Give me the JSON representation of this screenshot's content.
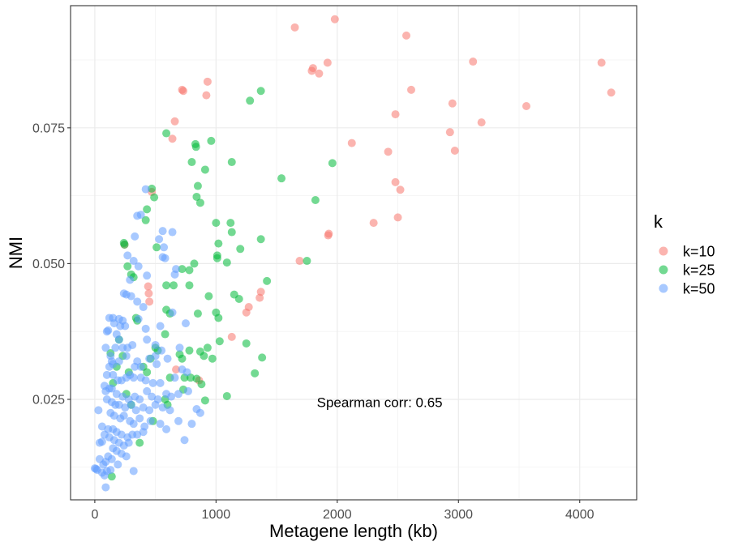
{
  "chart_data": {
    "type": "scatter",
    "xlabel": "Metagene length (kb)",
    "ylabel": "NMI",
    "xlim": [
      -200,
      4470
    ],
    "ylim": [
      0.0065,
      0.0975
    ],
    "x_ticks": [
      0,
      1000,
      2000,
      3000,
      4000
    ],
    "x_tick_labels": [
      "0",
      "1000",
      "2000",
      "3000",
      "4000"
    ],
    "y_ticks": [
      0.025,
      0.05,
      0.075
    ],
    "y_tick_labels": [
      "0.025",
      "0.050",
      "0.075"
    ],
    "grid": true,
    "legend": {
      "title": "k",
      "position": "right"
    },
    "annotation": {
      "text": "Spearman corr: 0.65",
      "x": 2350,
      "y": 0.0245
    },
    "series": [
      {
        "name": "k=10",
        "color": "#F8766D",
        "points": [
          [
            1650,
            0.0935
          ],
          [
            1980,
            0.095
          ],
          [
            2570,
            0.092
          ],
          [
            1790,
            0.0855
          ],
          [
            1800,
            0.086
          ],
          [
            1850,
            0.085
          ],
          [
            1920,
            0.087
          ],
          [
            3120,
            0.0872
          ],
          [
            4180,
            0.087
          ],
          [
            4260,
            0.0815
          ],
          [
            2610,
            0.082
          ],
          [
            2950,
            0.0795
          ],
          [
            3560,
            0.079
          ],
          [
            3190,
            0.076
          ],
          [
            2930,
            0.0742
          ],
          [
            2480,
            0.0775
          ],
          [
            2120,
            0.0722
          ],
          [
            2970,
            0.0708
          ],
          [
            2420,
            0.0706
          ],
          [
            930,
            0.0835
          ],
          [
            720,
            0.082
          ],
          [
            730,
            0.0818
          ],
          [
            920,
            0.081
          ],
          [
            660,
            0.0762
          ],
          [
            640,
            0.073
          ],
          [
            2480,
            0.065
          ],
          [
            2520,
            0.0636
          ],
          [
            2300,
            0.0575
          ],
          [
            2500,
            0.0585
          ],
          [
            1930,
            0.0555
          ],
          [
            1925,
            0.0552
          ],
          [
            1690,
            0.0505
          ],
          [
            1370,
            0.0448
          ],
          [
            1360,
            0.0437
          ],
          [
            1270,
            0.042
          ],
          [
            1250,
            0.041
          ],
          [
            1130,
            0.0365
          ],
          [
            440,
            0.0458
          ],
          [
            445,
            0.0445
          ],
          [
            450,
            0.043
          ],
          [
            245,
            0.0535
          ],
          [
            670,
            0.0305
          ],
          [
            860,
            0.0285
          ],
          [
            470,
            0.0632
          ]
        ]
      },
      {
        "name": "k=25",
        "color": "#00BA38",
        "points": [
          [
            1370,
            0.0818
          ],
          [
            1280,
            0.08
          ],
          [
            590,
            0.074
          ],
          [
            960,
            0.0726
          ],
          [
            830,
            0.072
          ],
          [
            835,
            0.0715
          ],
          [
            800,
            0.0687
          ],
          [
            1130,
            0.0687
          ],
          [
            1960,
            0.0685
          ],
          [
            910,
            0.0673
          ],
          [
            1540,
            0.0657
          ],
          [
            850,
            0.0643
          ],
          [
            840,
            0.0623
          ],
          [
            470,
            0.0638
          ],
          [
            490,
            0.0622
          ],
          [
            430,
            0.06
          ],
          [
            1820,
            0.0617
          ],
          [
            870,
            0.0612
          ],
          [
            420,
            0.058
          ],
          [
            1000,
            0.0575
          ],
          [
            1120,
            0.0575
          ],
          [
            1130,
            0.0558
          ],
          [
            1370,
            0.0545
          ],
          [
            1020,
            0.0537
          ],
          [
            1200,
            0.0527
          ],
          [
            510,
            0.053
          ],
          [
            240,
            0.0538
          ],
          [
            245,
            0.0535
          ],
          [
            820,
            0.05
          ],
          [
            1010,
            0.0515
          ],
          [
            1010,
            0.051
          ],
          [
            1090,
            0.0502
          ],
          [
            1420,
            0.0468
          ],
          [
            1750,
            0.0505
          ],
          [
            590,
            0.046
          ],
          [
            720,
            0.049
          ],
          [
            780,
            0.0488
          ],
          [
            780,
            0.046
          ],
          [
            650,
            0.046
          ],
          [
            940,
            0.044
          ],
          [
            1150,
            0.0443
          ],
          [
            1190,
            0.0435
          ],
          [
            270,
            0.0495
          ],
          [
            300,
            0.048
          ],
          [
            320,
            0.0475
          ],
          [
            340,
            0.04
          ],
          [
            590,
            0.0415
          ],
          [
            620,
            0.0408
          ],
          [
            850,
            0.0408
          ],
          [
            1000,
            0.041
          ],
          [
            1020,
            0.04
          ],
          [
            1030,
            0.0357
          ],
          [
            1250,
            0.0353
          ],
          [
            930,
            0.0345
          ],
          [
            780,
            0.034
          ],
          [
            870,
            0.0338
          ],
          [
            900,
            0.033
          ],
          [
            970,
            0.0325
          ],
          [
            1380,
            0.0327
          ],
          [
            700,
            0.0333
          ],
          [
            720,
            0.0325
          ],
          [
            500,
            0.0345
          ],
          [
            460,
            0.0325
          ],
          [
            430,
            0.03
          ],
          [
            580,
            0.037
          ],
          [
            520,
            0.034
          ],
          [
            400,
            0.031
          ],
          [
            620,
            0.029
          ],
          [
            740,
            0.029
          ],
          [
            790,
            0.029
          ],
          [
            840,
            0.0288
          ],
          [
            880,
            0.0278
          ],
          [
            730,
            0.0268
          ],
          [
            1320,
            0.0298
          ],
          [
            1090,
            0.0256
          ],
          [
            910,
            0.0248
          ],
          [
            580,
            0.025
          ],
          [
            600,
            0.024
          ],
          [
            370,
            0.017
          ],
          [
            140,
            0.0108
          ],
          [
            300,
            0.024
          ],
          [
            180,
            0.031
          ],
          [
            150,
            0.028
          ],
          [
            230,
            0.033
          ],
          [
            260,
            0.026
          ],
          [
            480,
            0.021
          ],
          [
            350,
            0.0395
          ],
          [
            200,
            0.036
          ],
          [
            130,
            0.0335
          ],
          [
            280,
            0.03
          ]
        ]
      },
      {
        "name": "k=50",
        "color": "#619CFF",
        "points": [
          [
            420,
            0.0637
          ],
          [
            350,
            0.0588
          ],
          [
            380,
            0.059
          ],
          [
            560,
            0.056
          ],
          [
            640,
            0.0558
          ],
          [
            530,
            0.0545
          ],
          [
            330,
            0.055
          ],
          [
            570,
            0.053
          ],
          [
            270,
            0.0515
          ],
          [
            580,
            0.051
          ],
          [
            560,
            0.0512
          ],
          [
            320,
            0.0505
          ],
          [
            360,
            0.0495
          ],
          [
            670,
            0.049
          ],
          [
            660,
            0.048
          ],
          [
            290,
            0.047
          ],
          [
            430,
            0.0478
          ],
          [
            240,
            0.0445
          ],
          [
            260,
            0.0443
          ],
          [
            300,
            0.044
          ],
          [
            350,
            0.043
          ],
          [
            400,
            0.042
          ],
          [
            120,
            0.04
          ],
          [
            150,
            0.04
          ],
          [
            200,
            0.0398
          ],
          [
            230,
            0.0395
          ],
          [
            360,
            0.0398
          ],
          [
            160,
            0.039
          ],
          [
            210,
            0.0385
          ],
          [
            250,
            0.0385
          ],
          [
            100,
            0.0375
          ],
          [
            110,
            0.0377
          ],
          [
            180,
            0.037
          ],
          [
            200,
            0.036
          ],
          [
            420,
            0.038
          ],
          [
            430,
            0.036
          ],
          [
            540,
            0.0385
          ],
          [
            640,
            0.041
          ],
          [
            750,
            0.039
          ],
          [
            170,
            0.0345
          ],
          [
            90,
            0.0345
          ],
          [
            230,
            0.0345
          ],
          [
            270,
            0.0345
          ],
          [
            310,
            0.035
          ],
          [
            500,
            0.035
          ],
          [
            550,
            0.034
          ],
          [
            700,
            0.0345
          ],
          [
            130,
            0.033
          ],
          [
            140,
            0.032
          ],
          [
            120,
            0.031
          ],
          [
            150,
            0.0315
          ],
          [
            200,
            0.032
          ],
          [
            260,
            0.033
          ],
          [
            330,
            0.031
          ],
          [
            350,
            0.032
          ],
          [
            380,
            0.031
          ],
          [
            450,
            0.0325
          ],
          [
            500,
            0.033
          ],
          [
            510,
            0.0315
          ],
          [
            600,
            0.0325
          ],
          [
            720,
            0.0305
          ],
          [
            760,
            0.03
          ],
          [
            100,
            0.0295
          ],
          [
            150,
            0.0295
          ],
          [
            190,
            0.0285
          ],
          [
            220,
            0.0285
          ],
          [
            260,
            0.029
          ],
          [
            290,
            0.0295
          ],
          [
            320,
            0.029
          ],
          [
            380,
            0.029
          ],
          [
            420,
            0.0285
          ],
          [
            480,
            0.028
          ],
          [
            540,
            0.028
          ],
          [
            660,
            0.029
          ],
          [
            80,
            0.0275
          ],
          [
            120,
            0.027
          ],
          [
            90,
            0.0265
          ],
          [
            140,
            0.027
          ],
          [
            180,
            0.026
          ],
          [
            230,
            0.0255
          ],
          [
            280,
            0.025
          ],
          [
            330,
            0.0255
          ],
          [
            370,
            0.025
          ],
          [
            430,
            0.0265
          ],
          [
            470,
            0.0255
          ],
          [
            520,
            0.025
          ],
          [
            590,
            0.026
          ],
          [
            630,
            0.0255
          ],
          [
            690,
            0.026
          ],
          [
            770,
            0.0265
          ],
          [
            100,
            0.025
          ],
          [
            140,
            0.0245
          ],
          [
            170,
            0.024
          ],
          [
            200,
            0.024
          ],
          [
            250,
            0.0235
          ],
          [
            300,
            0.024
          ],
          [
            340,
            0.023
          ],
          [
            400,
            0.0235
          ],
          [
            450,
            0.023
          ],
          [
            500,
            0.024
          ],
          [
            560,
            0.0235
          ],
          [
            620,
            0.023
          ],
          [
            840,
            0.0232
          ],
          [
            870,
            0.0225
          ],
          [
            30,
            0.023
          ],
          [
            130,
            0.0225
          ],
          [
            160,
            0.022
          ],
          [
            210,
            0.0215
          ],
          [
            240,
            0.022
          ],
          [
            290,
            0.021
          ],
          [
            320,
            0.0205
          ],
          [
            370,
            0.0215
          ],
          [
            410,
            0.02
          ],
          [
            460,
            0.021
          ],
          [
            540,
            0.0205
          ],
          [
            590,
            0.0195
          ],
          [
            690,
            0.021
          ],
          [
            800,
            0.0205
          ],
          [
            60,
            0.02
          ],
          [
            110,
            0.0195
          ],
          [
            150,
            0.0195
          ],
          [
            180,
            0.019
          ],
          [
            220,
            0.0185
          ],
          [
            270,
            0.018
          ],
          [
            310,
            0.0185
          ],
          [
            350,
            0.0185
          ],
          [
            400,
            0.019
          ],
          [
            80,
            0.0185
          ],
          [
            120,
            0.018
          ],
          [
            160,
            0.0175
          ],
          [
            200,
            0.017
          ],
          [
            240,
            0.0165
          ],
          [
            280,
            0.017
          ],
          [
            40,
            0.017
          ],
          [
            60,
            0.0172
          ],
          [
            150,
            0.016
          ],
          [
            180,
            0.0155
          ],
          [
            220,
            0.015
          ],
          [
            260,
            0.0145
          ],
          [
            110,
            0.0145
          ],
          [
            140,
            0.014
          ],
          [
            40,
            0.014
          ],
          [
            90,
            0.0135
          ],
          [
            70,
            0.013
          ],
          [
            190,
            0.013
          ],
          [
            0,
            0.0123
          ],
          [
            10,
            0.0122
          ],
          [
            20,
            0.012
          ],
          [
            100,
            0.0118
          ],
          [
            60,
            0.0115
          ],
          [
            130,
            0.012
          ],
          [
            320,
            0.0118
          ],
          [
            80,
            0.011
          ],
          [
            90,
            0.0088
          ],
          [
            740,
            0.0175
          ]
        ]
      }
    ]
  }
}
